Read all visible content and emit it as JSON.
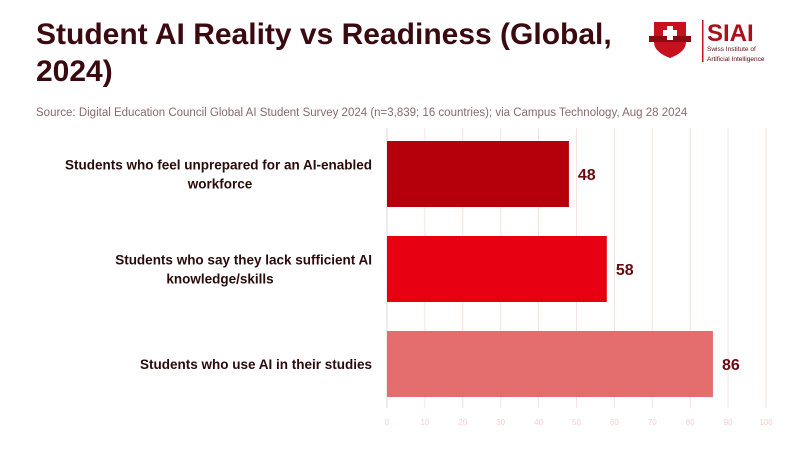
{
  "title": "Student AI Reality vs Readiness (Global, 2024)",
  "source": "Source: Digital Education Council Global AI Student Survey 2024 (n=3,839; 16 countries); via Campus Technology, Aug 28 2024",
  "logo": {
    "name": "SIAI",
    "subtitle_line1": "Swiss Institute of",
    "subtitle_line2": "Artificial Intelligence",
    "colors": {
      "brand": "#c8101e"
    }
  },
  "chart_data": {
    "type": "bar",
    "orientation": "horizontal",
    "categories": [
      [
        "Students who feel unprepared for an AI-enabled",
        "workforce"
      ],
      [
        "Students who say they lack sufficient AI",
        "knowledge/skills"
      ],
      [
        "Students who use AI in their studies"
      ]
    ],
    "values": [
      48,
      58,
      86
    ],
    "colors": [
      "#b5000b",
      "#e60012",
      "#e46e6e"
    ],
    "xlim": [
      0,
      100
    ],
    "xticks": [
      0,
      10,
      20,
      30,
      40,
      50,
      60,
      70,
      80,
      90,
      100
    ],
    "grid": true
  }
}
